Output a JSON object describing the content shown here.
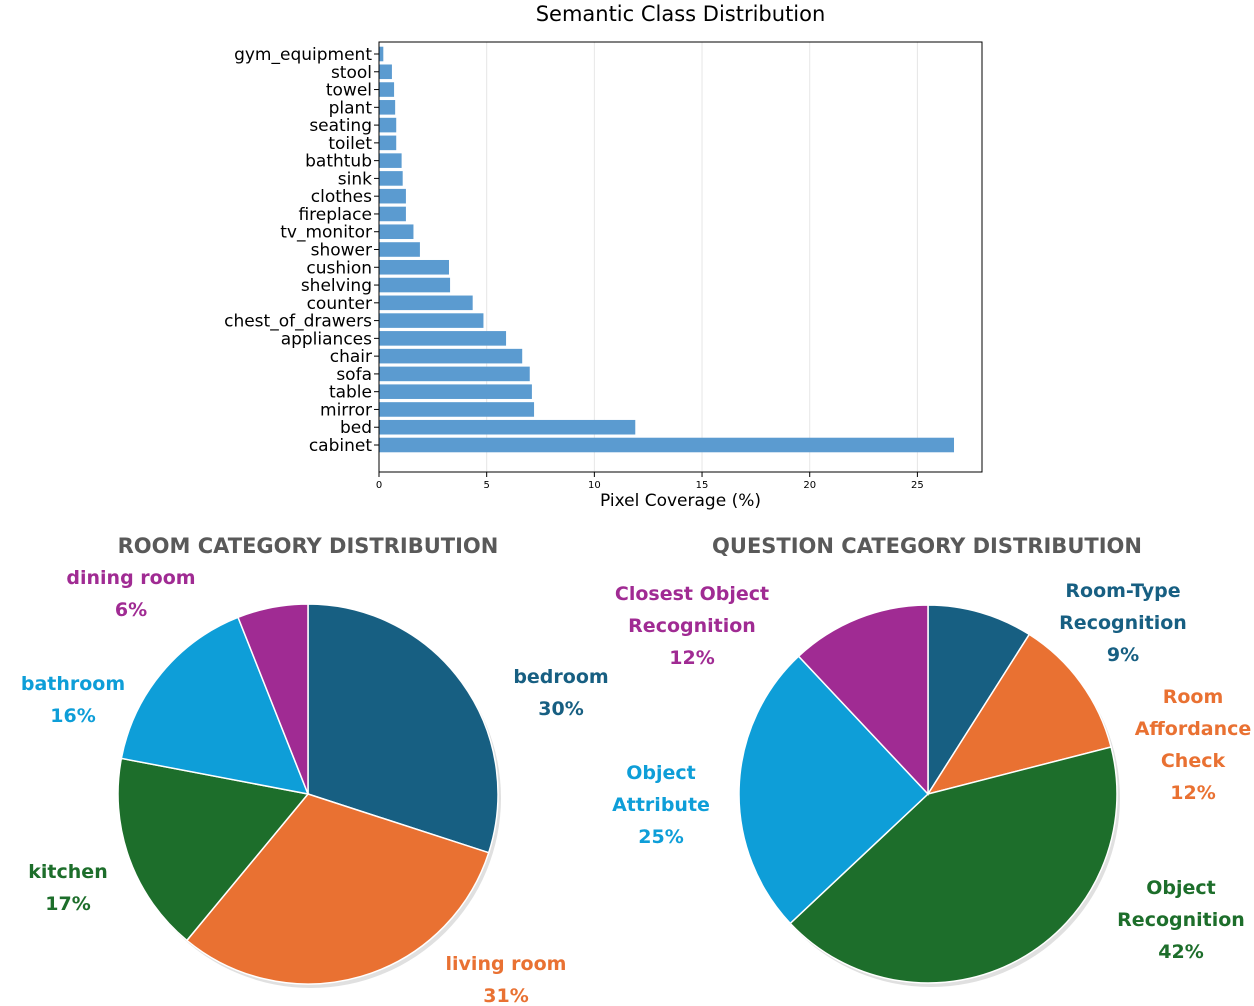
{
  "chart_data": [
    {
      "type": "bar",
      "orientation": "horizontal",
      "title": "Semantic Class Distribution",
      "xlabel": "Pixel Coverage (%)",
      "ylabel": "",
      "xlim": [
        0,
        28
      ],
      "xticks": [
        "0",
        "5",
        "10",
        "15",
        "20",
        "25"
      ],
      "grid": "vertical",
      "bar_color": "#5b9bd0",
      "categories": [
        "gym_equipment",
        "stool",
        "towel",
        "plant",
        "seating",
        "toilet",
        "bathtub",
        "sink",
        "clothes",
        "fireplace",
        "tv_monitor",
        "shower",
        "cushion",
        "shelving",
        "counter",
        "chest_of_drawers",
        "appliances",
        "chair",
        "sofa",
        "table",
        "mirror",
        "bed",
        "cabinet"
      ],
      "values": [
        0.2,
        0.6,
        0.7,
        0.75,
        0.8,
        0.8,
        1.05,
        1.1,
        1.25,
        1.25,
        1.6,
        1.9,
        3.25,
        3.3,
        4.35,
        4.85,
        5.9,
        6.65,
        7.0,
        7.1,
        7.2,
        11.9,
        26.7
      ]
    },
    {
      "type": "pie",
      "title": "ROOM CATEGORY DISTRIBUTION",
      "slices": [
        {
          "label": "bedroom",
          "value": 30,
          "value_label": "30%",
          "color": "#175f82"
        },
        {
          "label": "living room",
          "value": 31,
          "value_label": "31%",
          "color": "#e97132"
        },
        {
          "label": "kitchen",
          "value": 17,
          "value_label": "17%",
          "color": "#1d6e2b"
        },
        {
          "label": "bathroom",
          "value": 16,
          "value_label": "16%",
          "color": "#0e9ed8"
        },
        {
          "label": "dining room",
          "value": 6,
          "value_label": "6%",
          "color": "#a02b93"
        }
      ]
    },
    {
      "type": "pie",
      "title": "QUESTION CATEGORY DISTRIBUTION",
      "slices": [
        {
          "label_lines": [
            "Room-Type",
            "Recognition"
          ],
          "value": 9,
          "value_label": "9%",
          "color": "#175f82"
        },
        {
          "label_lines": [
            "Room",
            "Affordance",
            "Check"
          ],
          "value": 12,
          "value_label": "12%",
          "color": "#e97132"
        },
        {
          "label_lines": [
            "Object",
            "Recognition"
          ],
          "value": 42,
          "value_label": "42%",
          "color": "#1d6e2b"
        },
        {
          "label_lines": [
            "Object",
            "Attribute"
          ],
          "value": 25,
          "value_label": "25%",
          "color": "#0e9ed8"
        },
        {
          "label_lines": [
            "Closest Object",
            "Recognition"
          ],
          "value": 12,
          "value_label": "12%",
          "color": "#a02b93"
        }
      ]
    }
  ]
}
